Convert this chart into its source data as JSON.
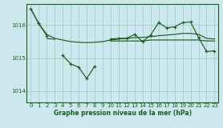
{
  "title": "Graphe pression niveau de la mer (hPa)",
  "background_color": "#cce8ee",
  "line_color": "#1a5c1a",
  "grid_color": "#99ccc4",
  "xlim": [
    -0.5,
    23.5
  ],
  "ylim": [
    1013.65,
    1016.65
  ],
  "yticks": [
    1014,
    1015,
    1016
  ],
  "xtick_labels": [
    "0",
    "1",
    "2",
    "3",
    "4",
    "5",
    "6",
    "7",
    "8",
    "9",
    "10",
    "11",
    "12",
    "13",
    "14",
    "15",
    "16",
    "17",
    "18",
    "19",
    "20",
    "21",
    "22",
    "23"
  ],
  "xticks": [
    0,
    1,
    2,
    3,
    4,
    5,
    6,
    7,
    8,
    9,
    10,
    11,
    12,
    13,
    14,
    15,
    16,
    17,
    18,
    19,
    20,
    21,
    22,
    23
  ],
  "series_upper": [
    1016.5,
    1016.05,
    1015.72,
    1015.6,
    1015.55,
    1015.5,
    1015.48,
    1015.47,
    1015.48,
    1015.5,
    1015.55,
    1015.58,
    1015.6,
    1015.62,
    1015.63,
    1015.65,
    1015.68,
    1015.7,
    1015.72,
    1015.75,
    1015.75,
    1015.72,
    1015.6,
    1015.58
  ],
  "series_lower": [
    null,
    null,
    1015.6,
    1015.57,
    null,
    null,
    null,
    null,
    null,
    null,
    1015.52,
    1015.52,
    1015.52,
    1015.52,
    1015.52,
    1015.55,
    1015.55,
    1015.55,
    1015.55,
    1015.55,
    1015.55,
    1015.55,
    1015.52,
    1015.52
  ],
  "series_main_segments": [
    {
      "x": [
        0,
        1
      ],
      "y": [
        1016.5,
        1016.05
      ]
    },
    {
      "x": [
        1,
        2
      ],
      "y": [
        1016.05,
        1015.68
      ]
    },
    {
      "x": [
        4,
        5,
        6,
        7,
        8
      ],
      "y": [
        1015.08,
        1014.82,
        1014.72,
        1014.38,
        1014.75
      ]
    },
    {
      "x": [
        10,
        11,
        12,
        13,
        14,
        15,
        16,
        17,
        18,
        19,
        20,
        21,
        22,
        23
      ],
      "y": [
        1015.58,
        1015.6,
        1015.6,
        1015.72,
        1015.5,
        1015.7,
        1016.08,
        1015.92,
        1015.95,
        1016.08,
        1016.1,
        1015.62,
        1015.2,
        1015.22
      ]
    }
  ]
}
